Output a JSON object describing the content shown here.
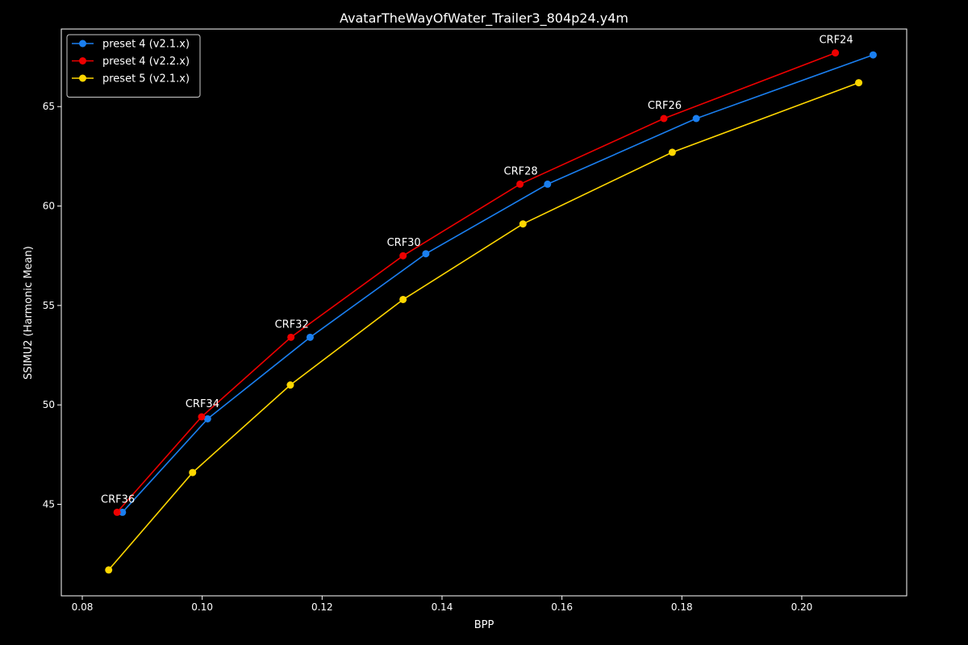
{
  "chart_data": {
    "type": "line",
    "title": "AvatarTheWayOfWater_Trailer3_804p24.y4m",
    "xlabel": "BPP",
    "ylabel": "SSIMU2 (Harmonic Mean)",
    "xlim": [
      0.0765,
      0.2175
    ],
    "ylim": [
      40.4,
      68.9
    ],
    "xticks": [
      0.08,
      0.1,
      0.12,
      0.14,
      0.16,
      0.18,
      0.2
    ],
    "xtick_labels": [
      "0.08",
      "0.10",
      "0.12",
      "0.14",
      "0.16",
      "0.18",
      "0.20"
    ],
    "yticks": [
      45,
      50,
      55,
      60,
      65
    ],
    "ytick_labels": [
      "45",
      "50",
      "55",
      "60",
      "65"
    ],
    "grid": false,
    "legend_position": "top-left",
    "background": "#000000",
    "series": [
      {
        "name": "preset 4 (v2.1.x)",
        "color": "#1a7ff0",
        "x": [
          0.0867,
          0.1009,
          0.118,
          0.1373,
          0.1576,
          0.1824,
          0.2119
        ],
        "y": [
          44.6,
          49.3,
          53.4,
          57.6,
          61.1,
          64.4,
          67.6
        ]
      },
      {
        "name": "preset 4 (v2.2.x)",
        "color": "#ee0000",
        "x": [
          0.0858,
          0.0999,
          0.1148,
          0.1335,
          0.153,
          0.177,
          0.2056
        ],
        "y": [
          44.6,
          49.4,
          53.4,
          57.5,
          61.1,
          64.4,
          67.7
        ]
      },
      {
        "name": "preset 5 (v2.1.x)",
        "color": "#ffd700",
        "x": [
          0.0844,
          0.0984,
          0.1147,
          0.1335,
          0.1535,
          0.1784,
          0.2095
        ],
        "y": [
          41.7,
          46.6,
          51.0,
          55.3,
          59.1,
          62.7,
          66.2
        ]
      }
    ],
    "annotations": [
      {
        "text": "CRF36",
        "x": 0.0858,
        "y": 44.6
      },
      {
        "text": "CRF34",
        "x": 0.0999,
        "y": 49.4
      },
      {
        "text": "CRF32",
        "x": 0.1148,
        "y": 53.4
      },
      {
        "text": "CRF30",
        "x": 0.1335,
        "y": 57.5
      },
      {
        "text": "CRF28",
        "x": 0.153,
        "y": 61.1
      },
      {
        "text": "CRF26",
        "x": 0.177,
        "y": 64.4
      },
      {
        "text": "CRF24",
        "x": 0.2056,
        "y": 67.7
      }
    ]
  }
}
